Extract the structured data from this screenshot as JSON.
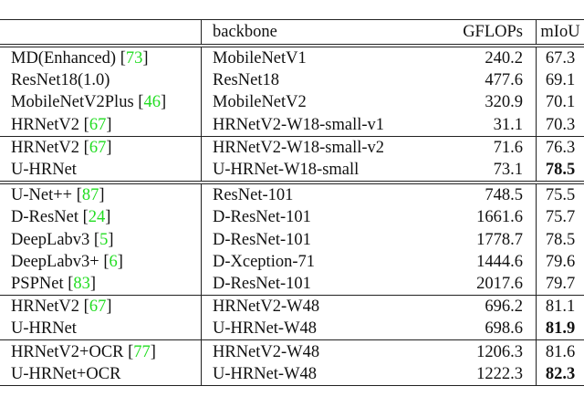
{
  "header": {
    "method": "",
    "backbone": "backbone",
    "gflops": "GFLOPs",
    "miou": "mIoU"
  },
  "rows": [
    {
      "method": "MD(Enhanced)",
      "cite": "73",
      "backbone": "MobileNetV1",
      "gflops": "240.2",
      "miou": "67.3",
      "bold": false
    },
    {
      "method": "ResNet18(1.0)",
      "cite": "",
      "backbone": "ResNet18",
      "gflops": "477.6",
      "miou": "69.1",
      "bold": false
    },
    {
      "method": "MobileNetV2Plus",
      "cite": "46",
      "backbone": "MobileNetV2",
      "gflops": "320.9",
      "miou": "70.1",
      "bold": false
    },
    {
      "method": "HRNetV2",
      "cite": "67",
      "backbone": "HRNetV2-W18-small-v1",
      "gflops": "31.1",
      "miou": "70.3",
      "bold": false
    },
    {
      "method": "HRNetV2",
      "cite": "67",
      "backbone": "HRNetV2-W18-small-v2",
      "gflops": "71.6",
      "miou": "76.3",
      "bold": false
    },
    {
      "method": "U-HRNet",
      "cite": "",
      "backbone": "U-HRNet-W18-small",
      "gflops": "73.1",
      "miou": "78.5",
      "bold": true
    },
    {
      "method": "U-Net++",
      "cite": "87",
      "backbone": "ResNet-101",
      "gflops": "748.5",
      "miou": "75.5",
      "bold": false
    },
    {
      "method": "D-ResNet",
      "cite": "24",
      "backbone": "D-ResNet-101",
      "gflops": "1661.6",
      "miou": "75.7",
      "bold": false
    },
    {
      "method": "DeepLabv3",
      "cite": "5",
      "backbone": "D-ResNet-101",
      "gflops": "1778.7",
      "miou": "78.5",
      "bold": false
    },
    {
      "method": "DeepLabv3+",
      "cite": "6",
      "backbone": "D-Xception-71",
      "gflops": "1444.6",
      "miou": "79.6",
      "bold": false
    },
    {
      "method": "PSPNet",
      "cite": "83",
      "backbone": "D-ResNet-101",
      "gflops": "2017.6",
      "miou": "79.7",
      "bold": false
    },
    {
      "method": "HRNetV2",
      "cite": "67",
      "backbone": "HRNetV2-W48",
      "gflops": "696.2",
      "miou": "81.1",
      "bold": false
    },
    {
      "method": "U-HRNet",
      "cite": "",
      "backbone": "U-HRNet-W48",
      "gflops": "698.6",
      "miou": "81.9",
      "bold": true
    },
    {
      "method": "HRNetV2+OCR",
      "cite": "77",
      "backbone": "HRNetV2-W48",
      "gflops": "1206.3",
      "miou": "81.6",
      "bold": false
    },
    {
      "method": "U-HRNet+OCR",
      "cite": "",
      "backbone": "U-HRNet-W48",
      "gflops": "1222.3",
      "miou": "82.3",
      "bold": true
    }
  ],
  "colors": {
    "citation": "#22dd22",
    "rule": "#222222"
  }
}
